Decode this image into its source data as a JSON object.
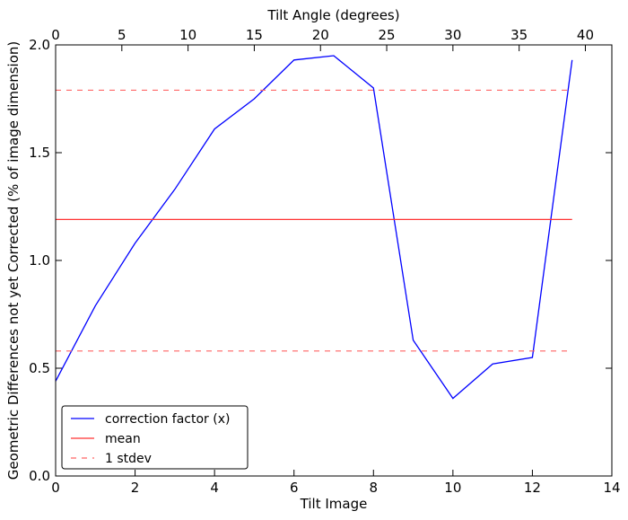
{
  "chart_data": {
    "type": "line",
    "title": "",
    "xlabel": "Tilt Image",
    "ylabel": "Geometric Differences not yet Corrected (% of image dimension)",
    "top_xlabel": "Tilt Angle (degrees)",
    "xlim": [
      0,
      14
    ],
    "ylim": [
      0.0,
      2.0
    ],
    "top_xlim": [
      0,
      42
    ],
    "x_ticks": [
      0,
      2,
      4,
      6,
      8,
      10,
      12,
      14
    ],
    "x_tick_labels": [
      "0",
      "2",
      "4",
      "6",
      "8",
      "10",
      "12",
      "14"
    ],
    "y_ticks": [
      0.0,
      0.5,
      1.0,
      1.5,
      2.0
    ],
    "y_tick_labels": [
      "0.0",
      "0.5",
      "1.0",
      "1.5",
      "2.0"
    ],
    "top_x_ticks": [
      0,
      5,
      10,
      15,
      20,
      25,
      30,
      35,
      40
    ],
    "top_x_tick_labels": [
      "0",
      "5",
      "10",
      "15",
      "20",
      "25",
      "30",
      "35",
      "40"
    ],
    "grid": false,
    "legend_position": "lower-left",
    "series": [
      {
        "name": "correction factor (x)",
        "style": "solid",
        "color": "#0000ff",
        "x": [
          0,
          1,
          2,
          3,
          4,
          5,
          6,
          7,
          8,
          9,
          10,
          11,
          12,
          13
        ],
        "values": [
          0.44,
          0.79,
          1.08,
          1.33,
          1.61,
          1.75,
          1.93,
          1.95,
          1.8,
          0.63,
          0.36,
          0.52,
          0.55,
          1.93
        ]
      },
      {
        "name": "mean",
        "style": "solid",
        "color": "#ff3333",
        "x": [
          0,
          13
        ],
        "values": [
          1.19,
          1.19
        ]
      },
      {
        "name": "1 stdev",
        "style": "dashed",
        "color": "#ff6666",
        "x": [
          0,
          13
        ],
        "values": [
          1.79,
          1.79
        ]
      },
      {
        "name": "",
        "style": "dashed",
        "color": "#ff6666",
        "x": [
          0,
          13
        ],
        "values": [
          0.58,
          0.58
        ]
      }
    ],
    "legend": [
      {
        "label": "correction factor (x)",
        "color": "#0000ff",
        "style": "solid"
      },
      {
        "label": "mean",
        "color": "#ff3333",
        "style": "solid"
      },
      {
        "label": "1 stdev",
        "color": "#ff6666",
        "style": "dashed"
      }
    ]
  }
}
